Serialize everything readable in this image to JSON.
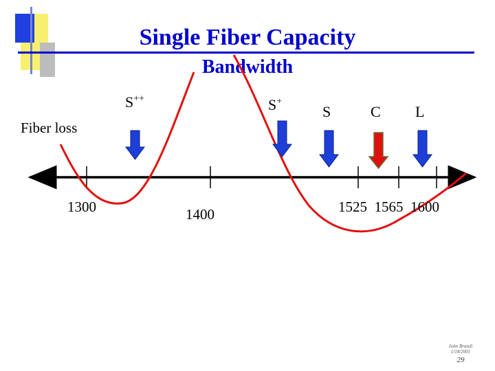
{
  "colors": {
    "accent_blue": "#0000cc",
    "arrow_blue": "#1d3fd8",
    "arrow_red": "#e01010",
    "loss_curve": "#e01010",
    "deco_blue": "#1f3fe0",
    "deco_yellow": "#f7ef70",
    "deco_grey": "#bcbcbc"
  },
  "title": "Single Fiber Capacity",
  "subtitle": "Bandwidth",
  "fiber_loss_label": "Fiber loss",
  "bands": [
    {
      "id": "s-plus-plus",
      "base": "S",
      "sup": "++",
      "arrow_color": "blue"
    },
    {
      "id": "s-plus",
      "base": "S",
      "sup": "+",
      "arrow_color": "blue"
    },
    {
      "id": "s",
      "base": "S",
      "sup": "",
      "arrow_color": "blue"
    },
    {
      "id": "c",
      "base": "C",
      "sup": "",
      "arrow_color": "red"
    },
    {
      "id": "l",
      "base": "L",
      "sup": "",
      "arrow_color": "blue"
    }
  ],
  "axis_labels": [
    "1300",
    "1400",
    "1525  1565  1600"
  ],
  "footer": {
    "author": "John Brandi",
    "date": "1/18/2001",
    "page": "29"
  }
}
